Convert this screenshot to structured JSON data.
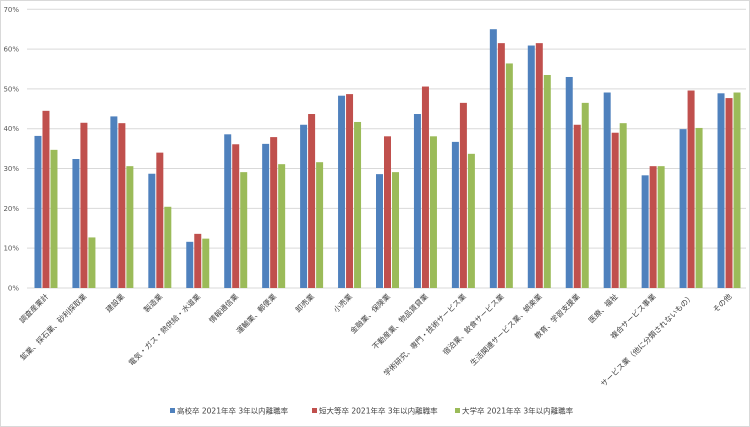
{
  "chart_data": {
    "type": "bar",
    "title": "",
    "xlabel": "",
    "ylabel": "",
    "ylim": [
      0,
      70
    ],
    "yticks": [
      "0%",
      "10%",
      "20%",
      "30%",
      "40%",
      "50%",
      "60%",
      "70%"
    ],
    "grid": true,
    "legend_position": "bottom",
    "categories": [
      "調査産業計",
      "鉱業、採石業、砂利採取業",
      "建設業",
      "製造業",
      "電気・ガス・熱供給・水道業",
      "情報通信業",
      "運輸業、郵便業",
      "卸売業",
      "小売業",
      "金融業、保険業",
      "不動産業、物品賃貸業",
      "学術研究、専門・技術サービス業",
      "宿泊業、飲食サービス業",
      "生活関連サービス業、娯楽業",
      "教育、学習支援業",
      "医療、福祉",
      "複合サービス事業",
      "サービス業（他に分類されないもの）",
      "その他"
    ],
    "series": [
      {
        "name": "高校卒 2021年卒 3年以内離職率",
        "color": "#4f81bd",
        "values": [
          38.2,
          32.4,
          43.1,
          28.7,
          11.6,
          38.6,
          36.2,
          41.0,
          48.3,
          28.6,
          43.7,
          36.7,
          65.0,
          60.9,
          53.0,
          49.1,
          28.3,
          39.9,
          48.9
        ]
      },
      {
        "name": "短大等卒 2021年卒 3年以内離職率",
        "color": "#c0504d",
        "values": [
          44.5,
          41.5,
          41.4,
          34.0,
          13.6,
          36.1,
          37.9,
          43.7,
          48.7,
          38.1,
          50.6,
          46.5,
          61.5,
          61.5,
          41.0,
          39.0,
          30.6,
          49.6,
          47.7
        ]
      },
      {
        "name": "大学卒 2021年卒 3年以内離職率",
        "color": "#9bbb59",
        "values": [
          34.7,
          12.7,
          30.6,
          20.4,
          12.4,
          29.1,
          31.1,
          31.6,
          41.7,
          29.1,
          38.1,
          33.7,
          56.4,
          53.5,
          46.5,
          41.4,
          30.6,
          40.2,
          49.1
        ]
      }
    ]
  }
}
